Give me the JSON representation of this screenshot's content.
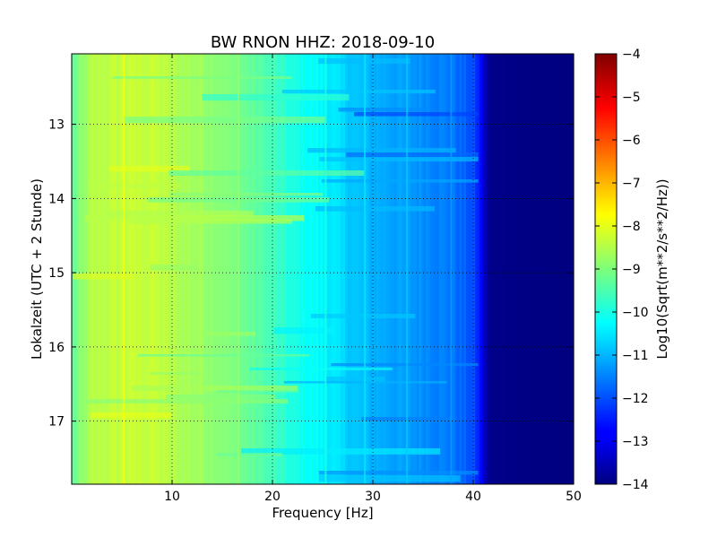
{
  "chart_data": {
    "type": "heatmap",
    "title": "BW RNON HHZ: 2018-09-10",
    "xlabel": "Frequency [Hz]",
    "ylabel": "Lokalzeit (UTC + 2 Stunde)",
    "xlim": [
      0,
      50
    ],
    "ylim": [
      12.05,
      17.85
    ],
    "y_inverted": true,
    "x_ticks": [
      10,
      20,
      30,
      40,
      50
    ],
    "y_ticks": [
      13,
      14,
      15,
      16,
      17
    ],
    "grid": true,
    "colormap": "jet",
    "colorbar": {
      "label": "Log10(Sqrt(m**2/s**2/Hz))",
      "range": [
        -14,
        -4
      ],
      "ticks": [
        -4,
        -5,
        -6,
        -7,
        -8,
        -9,
        -10,
        -11,
        -12,
        -13,
        -14
      ]
    },
    "spectrum_profile": {
      "frequency_hz": [
        0,
        2,
        5,
        8,
        10,
        13,
        15,
        18,
        20,
        22,
        25,
        28,
        30,
        33,
        36,
        38,
        40,
        40.5,
        41,
        41.5,
        50
      ],
      "log10_amplitude": [
        -9.3,
        -8.5,
        -8.3,
        -8.3,
        -8.5,
        -8.7,
        -8.9,
        -9.3,
        -9.6,
        -10.0,
        -10.3,
        -10.8,
        -11.0,
        -11.2,
        -11.4,
        -11.6,
        -12.0,
        -12.4,
        -13.0,
        -13.9,
        -14.0
      ]
    }
  }
}
